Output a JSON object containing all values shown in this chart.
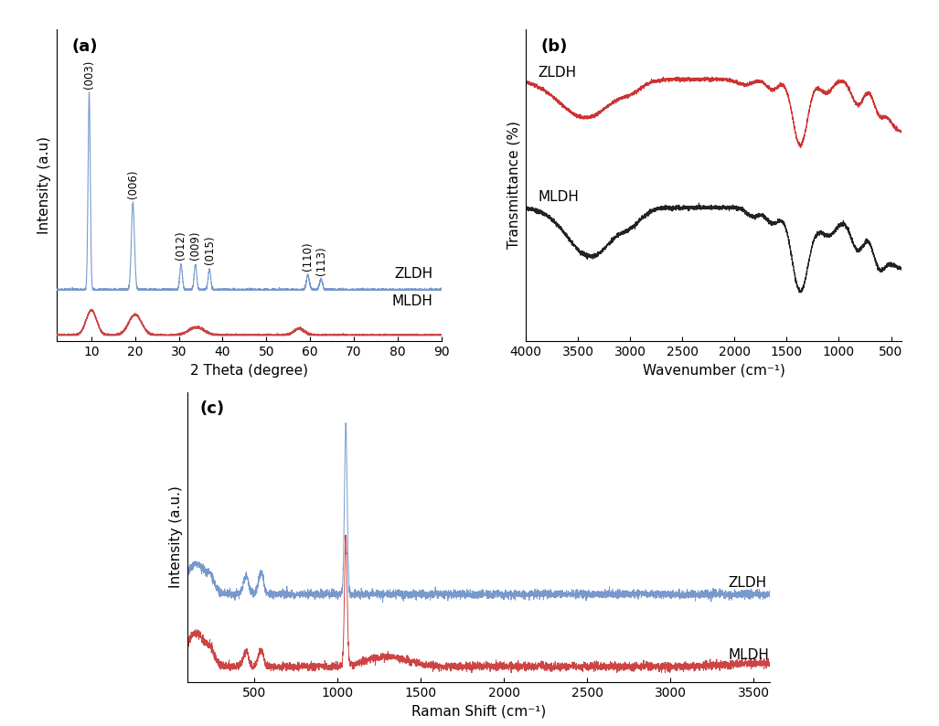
{
  "panel_a": {
    "label": "(a)",
    "xlabel": "2 Theta (degree)",
    "ylabel": "Intensity (a.u)",
    "xlim": [
      2,
      90
    ],
    "xticks": [
      10,
      20,
      30,
      40,
      50,
      60,
      70,
      80,
      90
    ],
    "zldh_color": "#7799CC",
    "mldh_color": "#CC4444",
    "zldh_label": "ZLDH",
    "mldh_label": "MLDH"
  },
  "panel_b": {
    "label": "(b)",
    "xlabel": "Wavenumber (cm⁻¹)",
    "ylabel": "Transmittance (%)",
    "xlim": [
      4000,
      400
    ],
    "xticks": [
      4000,
      3500,
      3000,
      2500,
      2000,
      1500,
      1000,
      500
    ],
    "zldh_color": "#CC3333",
    "mldh_color": "#222222",
    "zldh_label": "ZLDH",
    "mldh_label": "MLDH"
  },
  "panel_c": {
    "label": "(c)",
    "xlabel": "Raman Shift (cm⁻¹)",
    "ylabel": "Intensity (a.u.)",
    "xlim": [
      100,
      3600
    ],
    "xticks": [
      500,
      1000,
      1500,
      2000,
      2500,
      3000,
      3500
    ],
    "zldh_color": "#7799CC",
    "mldh_color": "#CC4444",
    "zldh_label": "ZLDH",
    "mldh_label": "MLDH"
  },
  "figure_bg": "#FFFFFF",
  "label_fontsize": 11,
  "annotation_fontsize": 8.5,
  "series_label_fontsize": 11
}
